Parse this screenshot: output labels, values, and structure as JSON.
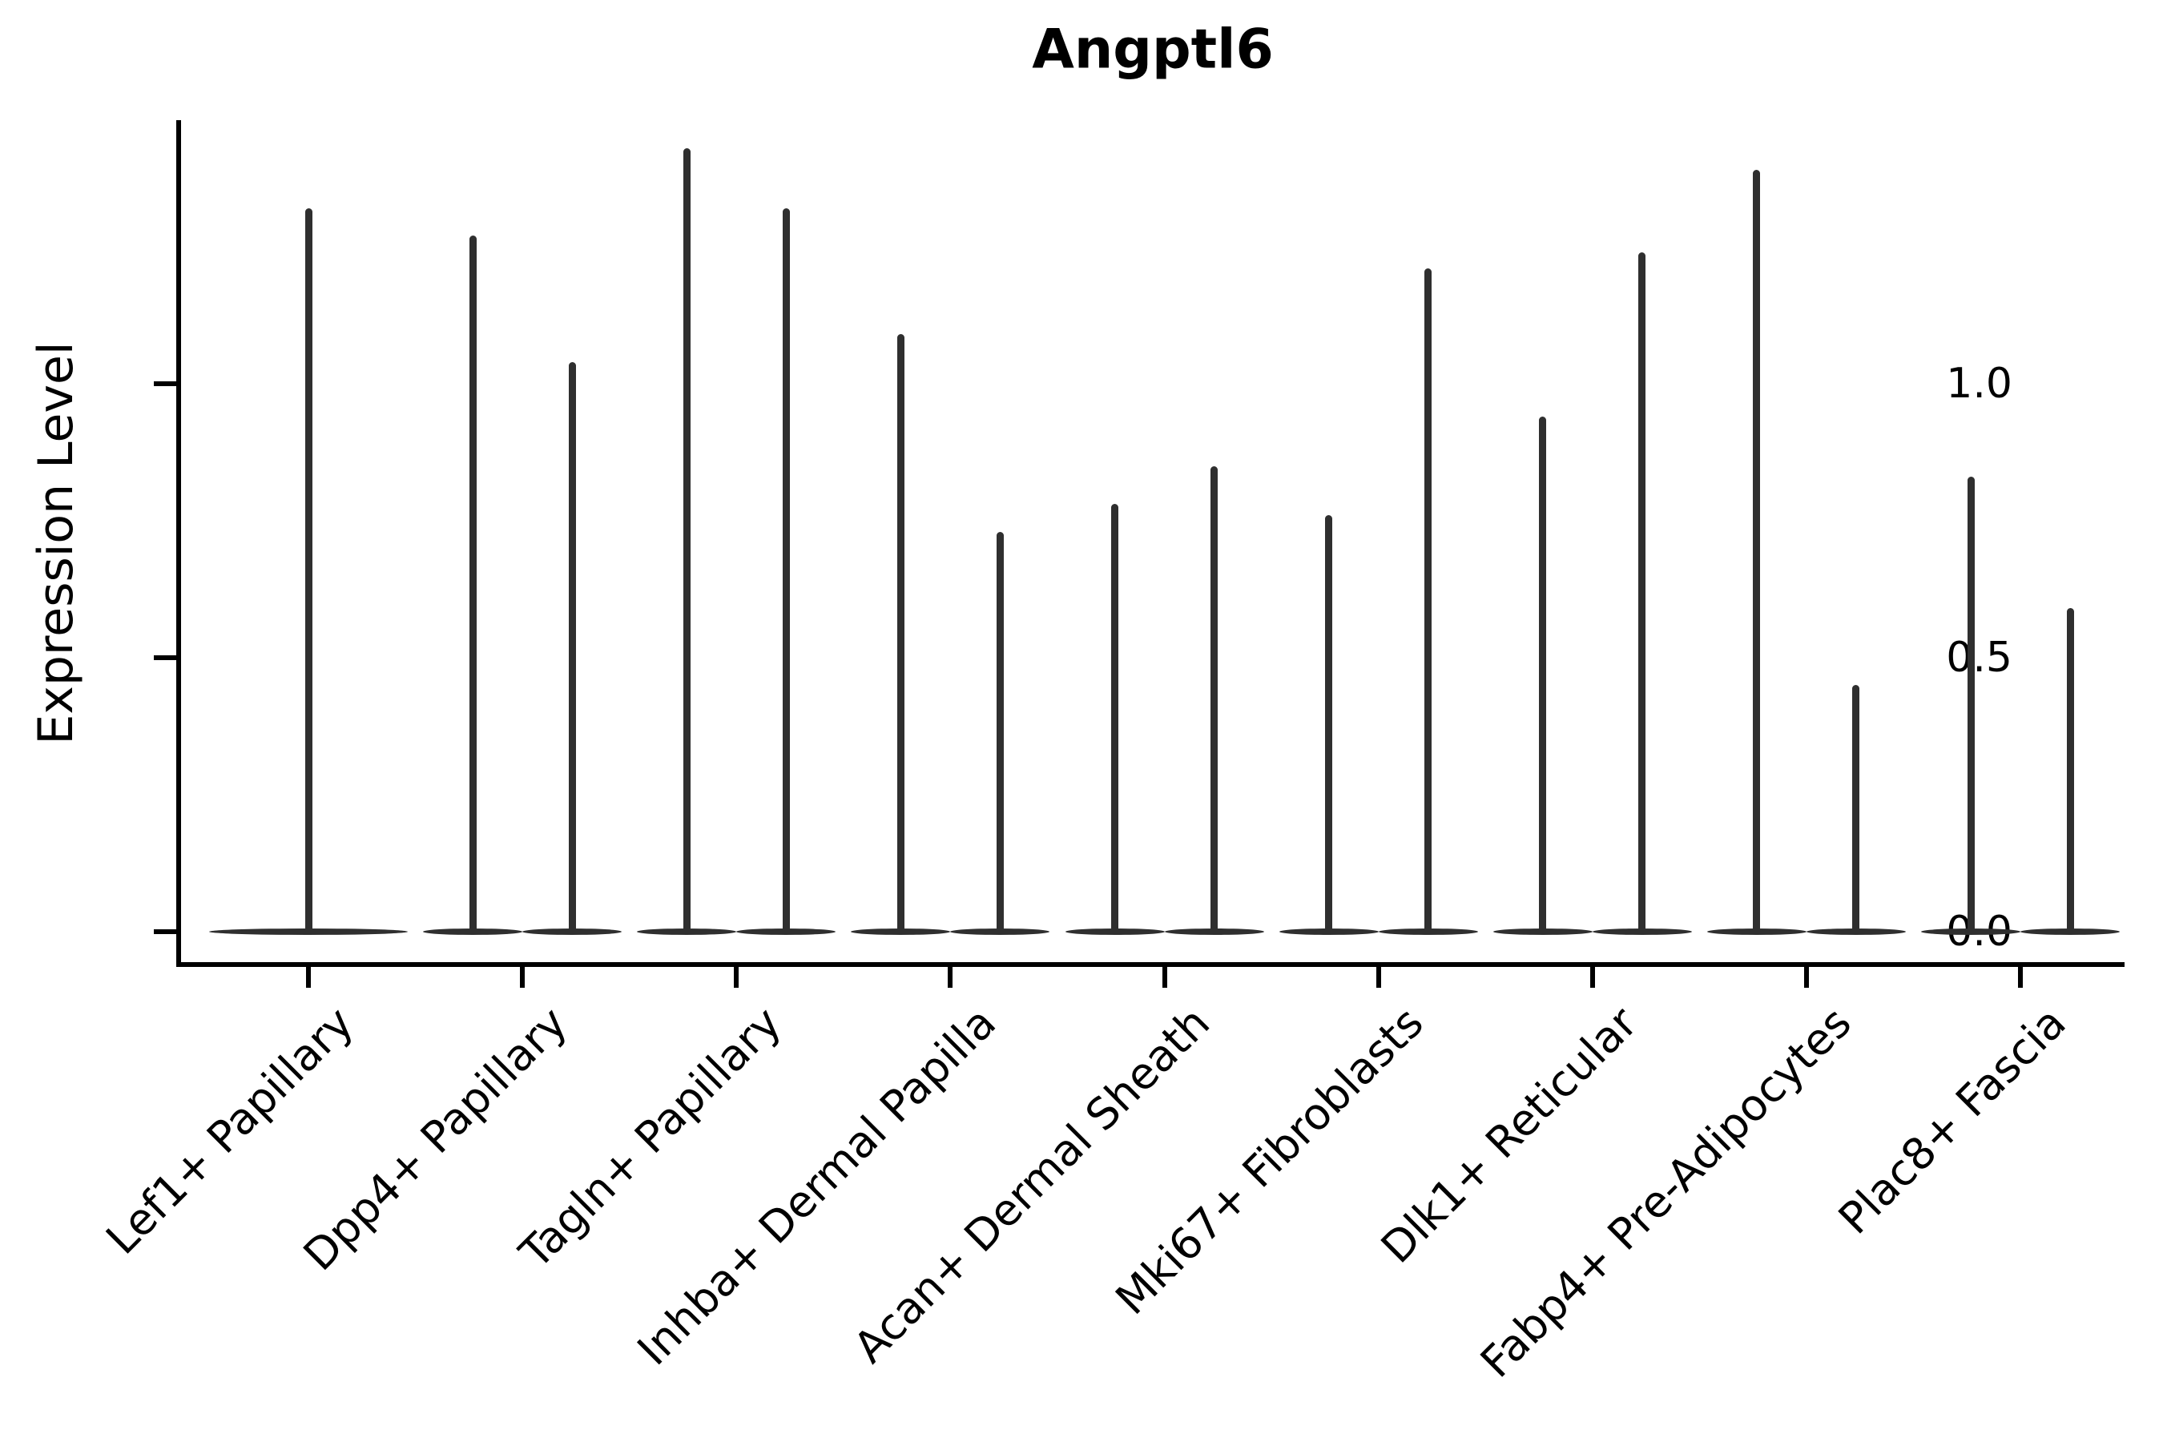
{
  "chart_data": {
    "type": "violin",
    "title": "Angptl6",
    "ylabel": "Expression Level",
    "xlabel": "",
    "yticks_labels": [
      "0.0",
      "0.5",
      "1.0"
    ],
    "ytick_values": [
      0.0,
      0.5,
      1.0
    ],
    "ylim": [
      -0.06,
      1.47
    ],
    "grid": false,
    "legend": false,
    "categories": [
      "Lef1+ Papillary",
      "Dpp4+ Papillary",
      "Tagln+ Papillary",
      "Inhba+ Dermal Papilla",
      "Acan+ Dermal Sheath",
      "Mki67+ Fibroblasts",
      "Dlk1+ Reticular",
      "Fabp4+ Pre-Adipocytes",
      "Plac8+ Fascia"
    ],
    "violins": [
      {
        "category": "Lef1+ Papillary",
        "peaks": [
          1.32
        ]
      },
      {
        "category": "Dpp4+ Papillary",
        "peaks": [
          1.27,
          1.04
        ]
      },
      {
        "category": "Tagln+ Papillary",
        "peaks": [
          1.43,
          1.32
        ]
      },
      {
        "category": "Inhba+ Dermal Papilla",
        "peaks": [
          1.09,
          0.73
        ]
      },
      {
        "category": "Acan+ Dermal Sheath",
        "peaks": [
          0.78,
          0.85
        ]
      },
      {
        "category": "Mki67+ Fibroblasts",
        "peaks": [
          0.76,
          1.21
        ]
      },
      {
        "category": "Dlk1+ Reticular",
        "peaks": [
          0.94,
          1.24
        ]
      },
      {
        "category": "Fabp4+ Pre-Adipocytes",
        "peaks": [
          1.39,
          0.45
        ]
      },
      {
        "category": "Plac8+ Fascia",
        "peaks": [
          0.83,
          0.59
        ]
      }
    ],
    "colors": {
      "violin": "#2f2f2f",
      "axis": "#000000",
      "text": "#000000",
      "background": "#ffffff"
    }
  }
}
